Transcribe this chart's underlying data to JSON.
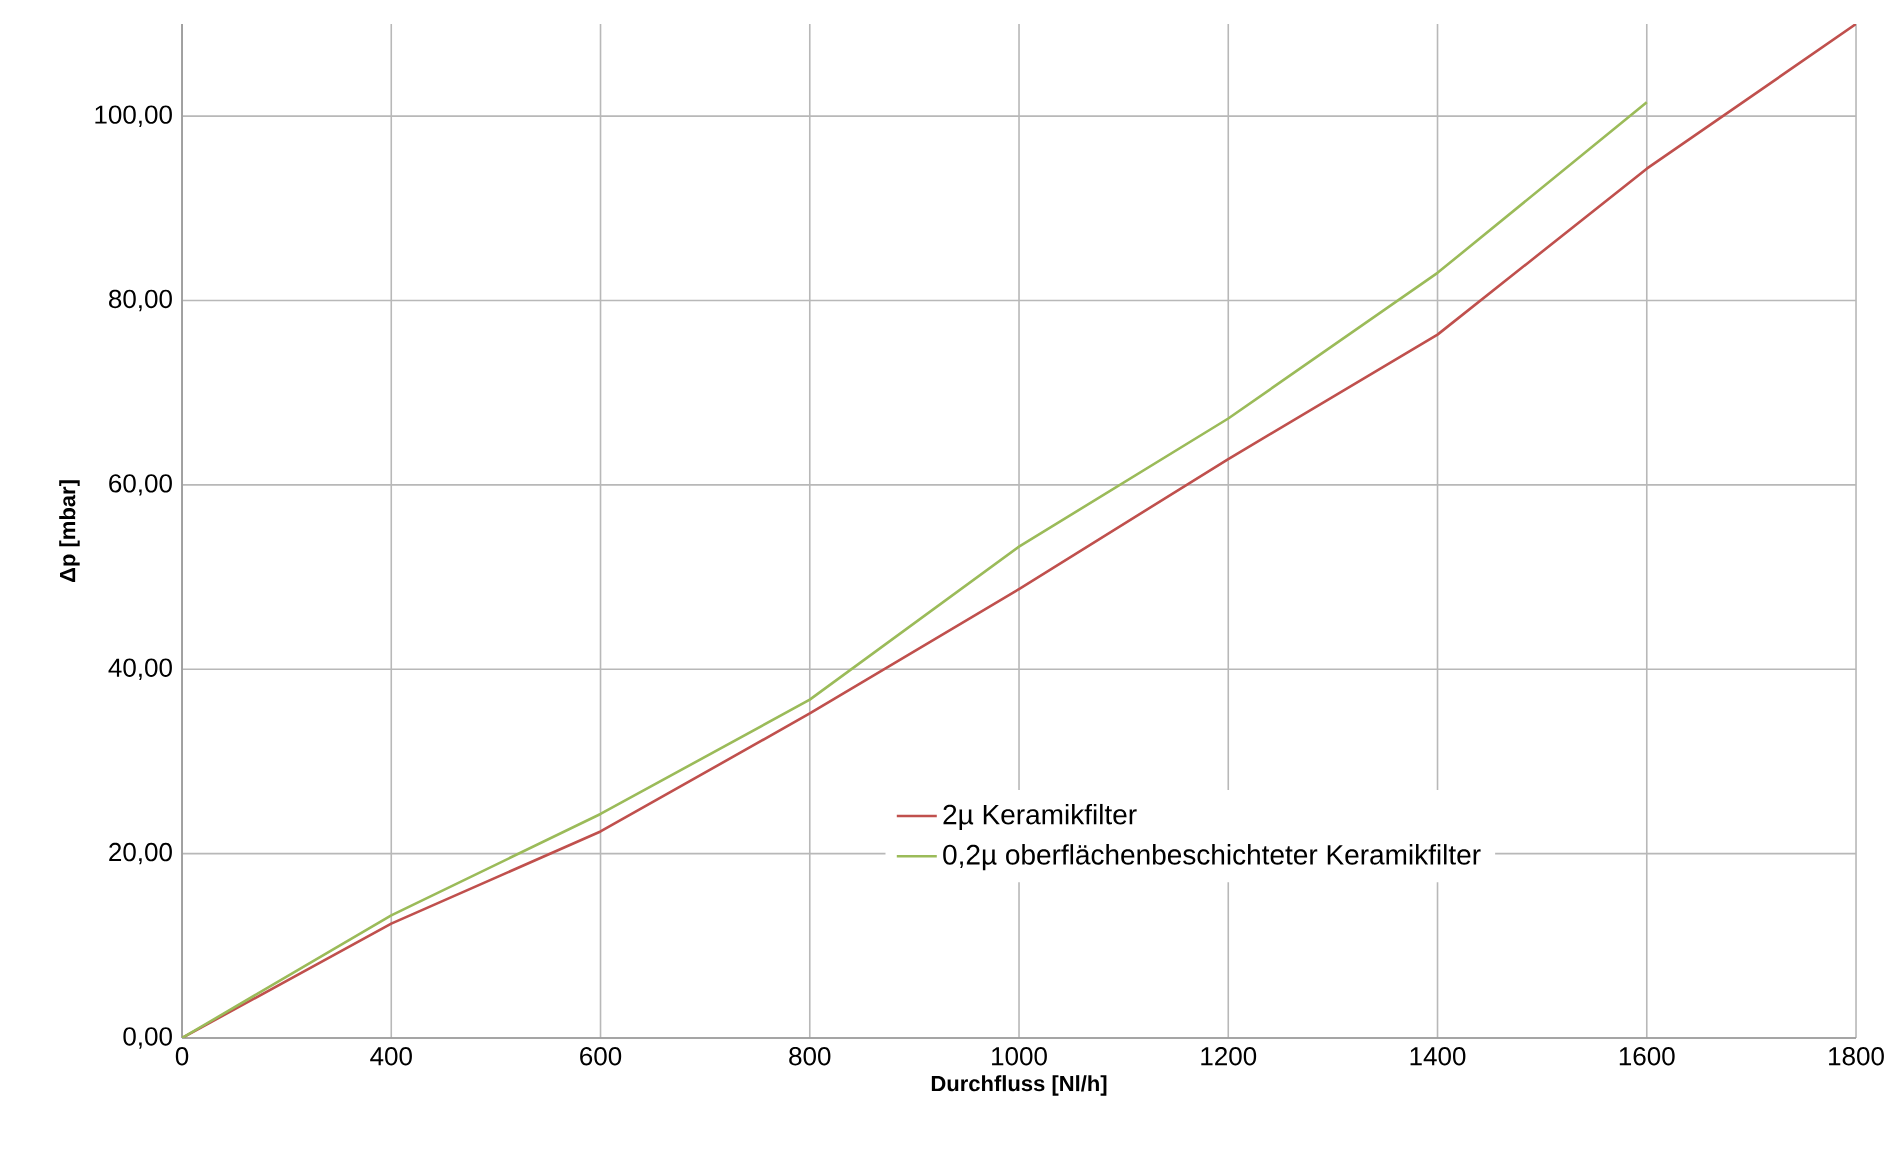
{
  "chart_data": {
    "type": "line",
    "xlabel": "Durchfluss [Nl/h]",
    "ylabel": "Δp [mbar]",
    "categories": [
      "0",
      "400",
      "600",
      "800",
      "1000",
      "1200",
      "1400",
      "1600",
      "1800"
    ],
    "series": [
      {
        "name": "2µ Keramikfilter",
        "color": "#c0504d",
        "values": [
          0,
          12.4,
          22.4,
          35.2,
          48.7,
          62.8,
          76.3,
          94.3,
          110
        ]
      },
      {
        "name": "0,2µ oberflächenbeschichteter Keramikfilter",
        "color": "#9bbb59",
        "values": [
          0,
          13.3,
          24.3,
          36.7,
          53.3,
          67.2,
          83.0,
          101.5,
          null
        ]
      }
    ],
    "ylim": [
      0,
      110
    ],
    "yticks": [
      {
        "value": 0,
        "label": "0,00"
      },
      {
        "value": 20,
        "label": "20,00"
      },
      {
        "value": 40,
        "label": "40,00"
      },
      {
        "value": 60,
        "label": "60,00"
      },
      {
        "value": 80,
        "label": "80,00"
      },
      {
        "value": 100,
        "label": "100,00"
      }
    ],
    "grid": true,
    "legend": "bottom",
    "marker": "none",
    "line_style": "solid"
  }
}
